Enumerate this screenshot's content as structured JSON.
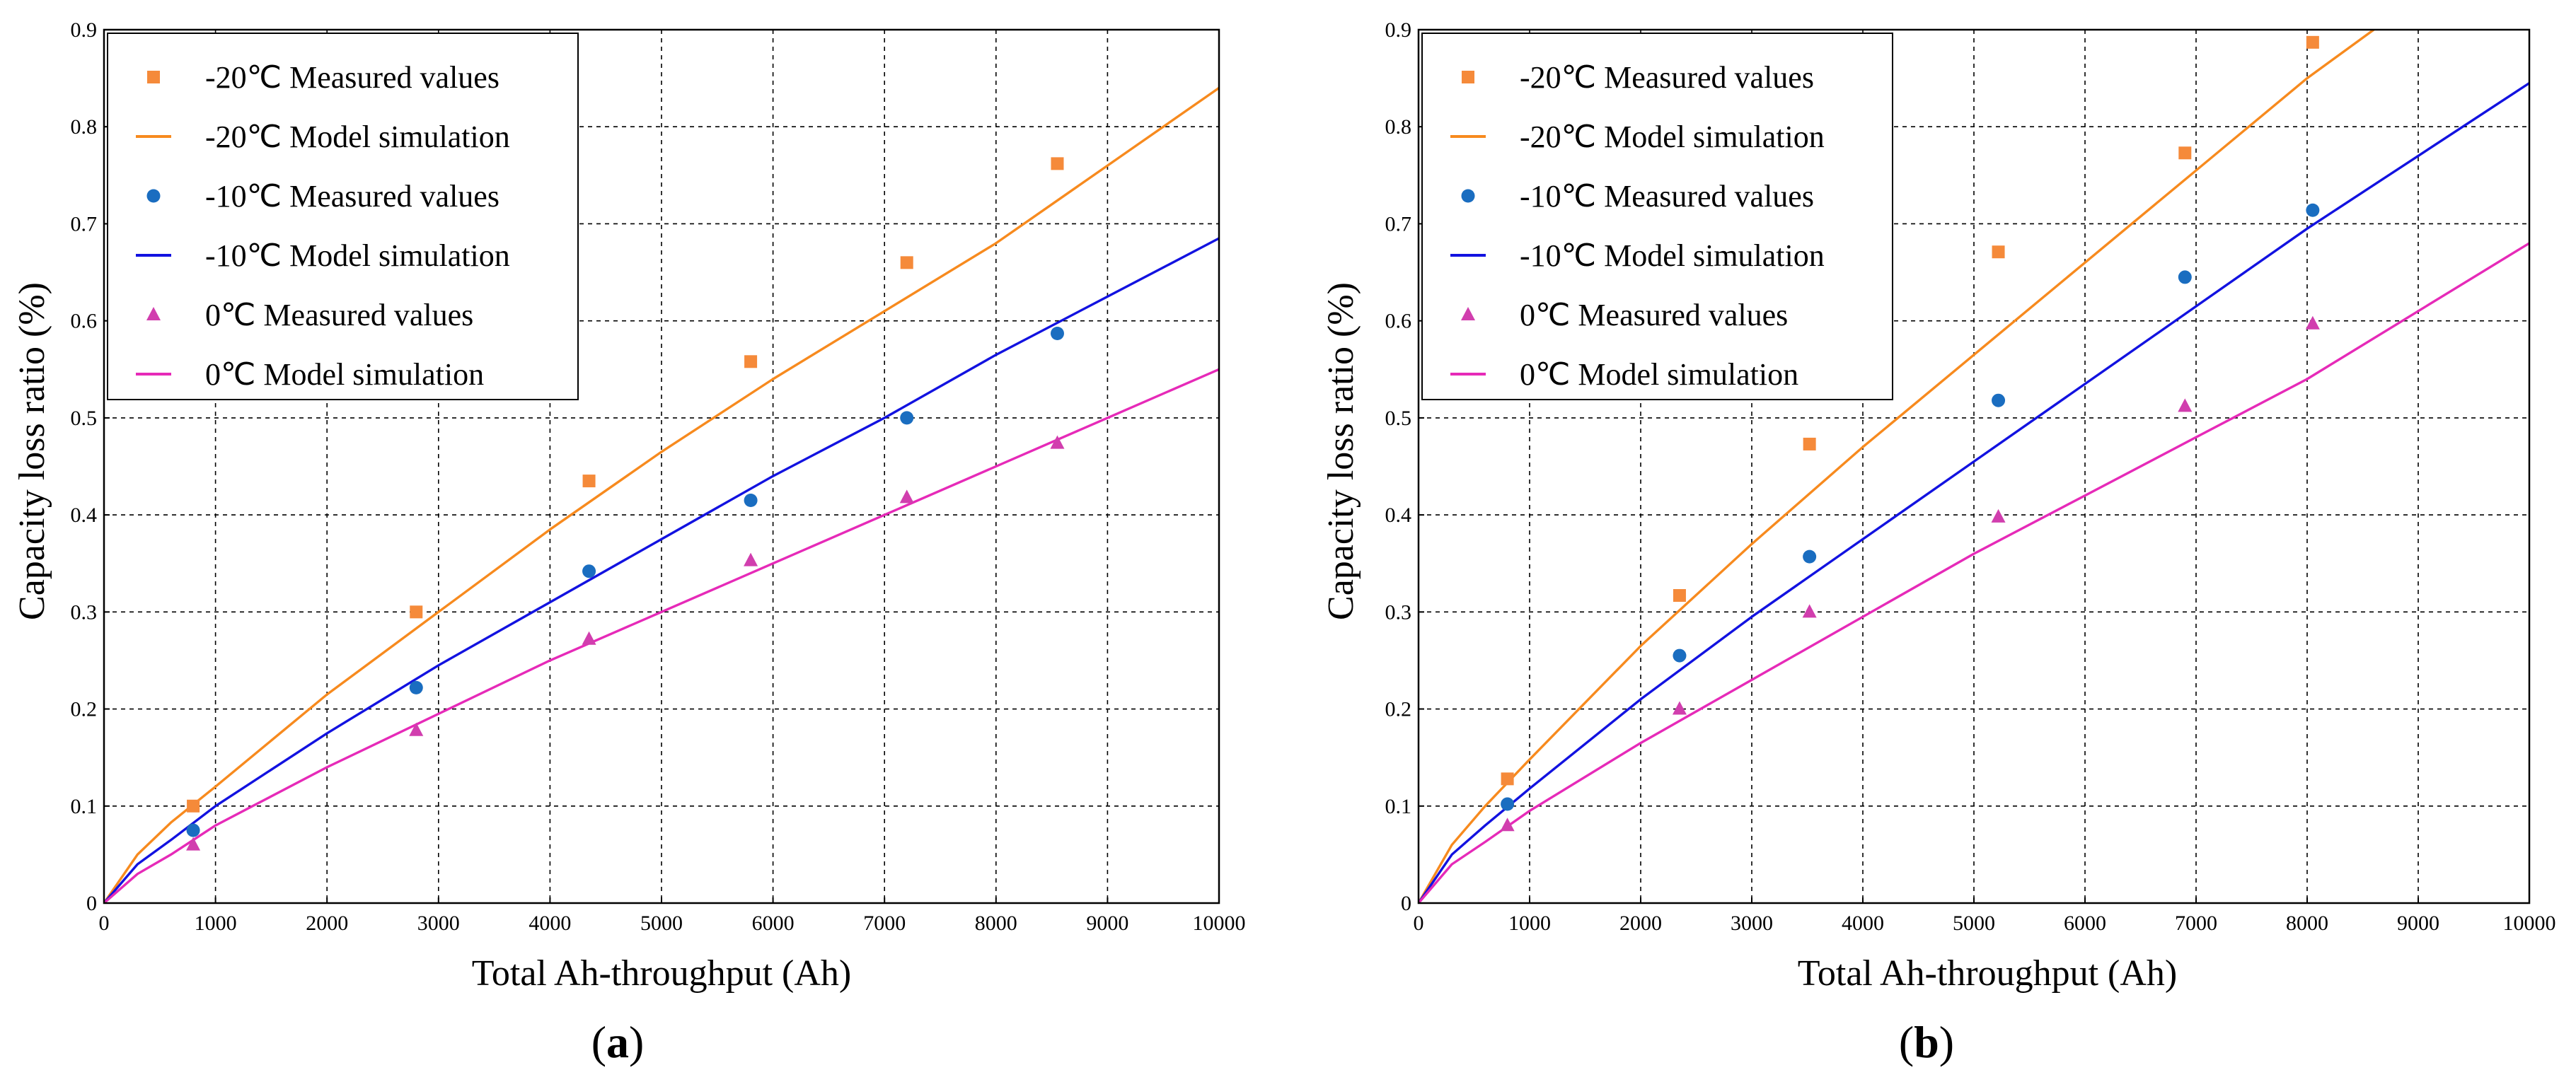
{
  "chart_data": [
    {
      "type": "scatter",
      "panel_label": "(a)",
      "panel_letter": "a",
      "xlabel": "Total Ah-throughput (Ah)",
      "ylabel": "Capacity loss ratio (%)",
      "xlim": [
        0,
        10000
      ],
      "ylim": [
        0,
        0.9
      ],
      "xticks": [
        0,
        1000,
        2000,
        3000,
        4000,
        5000,
        6000,
        7000,
        8000,
        9000,
        10000
      ],
      "yticks": [
        0,
        0.1,
        0.2,
        0.3,
        0.4,
        0.5,
        0.6,
        0.7,
        0.8,
        0.9
      ],
      "grid": true,
      "legend_position": "top-left",
      "series": [
        {
          "name": "-20℃ Measured values",
          "kind": "marker",
          "marker": "square",
          "color": "#F58A3A",
          "x": [
            800,
            2800,
            4350,
            5800,
            7200,
            8550
          ],
          "y": [
            0.1,
            0.3,
            0.435,
            0.558,
            0.66,
            0.762
          ]
        },
        {
          "name": "-20℃ Model simulation",
          "kind": "line",
          "color": "#F78A1E",
          "x": [
            0,
            300,
            600,
            1000,
            2000,
            3000,
            4000,
            5000,
            6000,
            7000,
            8000,
            9000,
            10000
          ],
          "y": [
            0,
            0.05,
            0.083,
            0.12,
            0.215,
            0.3,
            0.385,
            0.465,
            0.54,
            0.61,
            0.68,
            0.76,
            0.84
          ]
        },
        {
          "name": "-10℃ Measured values",
          "kind": "marker",
          "marker": "circle",
          "color": "#1A6DC0",
          "x": [
            800,
            2800,
            4350,
            5800,
            7200,
            8550
          ],
          "y": [
            0.075,
            0.222,
            0.342,
            0.415,
            0.5,
            0.587
          ]
        },
        {
          "name": "-10℃ Model simulation",
          "kind": "line",
          "color": "#1212E0",
          "x": [
            0,
            300,
            600,
            1000,
            2000,
            3000,
            4000,
            5000,
            6000,
            7000,
            8000,
            9000,
            10000
          ],
          "y": [
            0,
            0.04,
            0.065,
            0.1,
            0.175,
            0.245,
            0.31,
            0.375,
            0.44,
            0.5,
            0.565,
            0.625,
            0.685
          ]
        },
        {
          "name": "0℃ Measured values",
          "kind": "marker",
          "marker": "triangle",
          "color": "#D13EAE",
          "x": [
            800,
            2800,
            4350,
            5800,
            7200,
            8550
          ],
          "y": [
            0.06,
            0.178,
            0.272,
            0.353,
            0.418,
            0.474
          ]
        },
        {
          "name": "0℃ Model simulation",
          "kind": "line",
          "color": "#E62AB8",
          "x": [
            0,
            300,
            600,
            1000,
            2000,
            3000,
            4000,
            5000,
            6000,
            7000,
            8000,
            9000,
            10000
          ],
          "y": [
            0,
            0.03,
            0.05,
            0.08,
            0.14,
            0.195,
            0.25,
            0.3,
            0.35,
            0.4,
            0.45,
            0.5,
            0.55
          ]
        }
      ]
    },
    {
      "type": "scatter",
      "panel_label": "(b)",
      "panel_letter": "b",
      "xlabel": "Total Ah-throughput (Ah)",
      "ylabel": "Capacity loss ratio (%)",
      "xlim": [
        0,
        10000
      ],
      "ylim": [
        0,
        0.9
      ],
      "xticks": [
        0,
        1000,
        2000,
        3000,
        4000,
        5000,
        6000,
        7000,
        8000,
        9000,
        10000
      ],
      "yticks": [
        0,
        0.1,
        0.2,
        0.3,
        0.4,
        0.5,
        0.6,
        0.7,
        0.8,
        0.9
      ],
      "grid": true,
      "legend_position": "top-left",
      "series": [
        {
          "name": "-20℃ Measured values",
          "kind": "marker",
          "marker": "square",
          "color": "#F58A3A",
          "x": [
            800,
            2350,
            3520,
            5220,
            6900,
            8050
          ],
          "y": [
            0.128,
            0.317,
            0.473,
            0.671,
            0.773,
            0.887
          ]
        },
        {
          "name": "-20℃ Model simulation",
          "kind": "line",
          "color": "#F78A1E",
          "x": [
            0,
            300,
            600,
            1000,
            2000,
            3000,
            4000,
            5000,
            6000,
            7000,
            8000,
            8600
          ],
          "y": [
            0,
            0.06,
            0.1,
            0.148,
            0.265,
            0.37,
            0.47,
            0.565,
            0.66,
            0.755,
            0.85,
            0.9
          ]
        },
        {
          "name": "-10℃ Measured values",
          "kind": "marker",
          "marker": "circle",
          "color": "#1A6DC0",
          "x": [
            800,
            2350,
            3520,
            5220,
            6900,
            8050
          ],
          "y": [
            0.102,
            0.255,
            0.357,
            0.518,
            0.645,
            0.714
          ]
        },
        {
          "name": "-10℃ Model simulation",
          "kind": "line",
          "color": "#1212E0",
          "x": [
            0,
            300,
            600,
            1000,
            2000,
            3000,
            4000,
            5000,
            6000,
            7000,
            8000,
            9000,
            10000
          ],
          "y": [
            0,
            0.05,
            0.08,
            0.118,
            0.21,
            0.295,
            0.375,
            0.455,
            0.535,
            0.615,
            0.695,
            0.77,
            0.845
          ]
        },
        {
          "name": "0℃ Measured values",
          "kind": "marker",
          "marker": "triangle",
          "color": "#D13EAE",
          "x": [
            800,
            2350,
            3520,
            5220,
            6900,
            8050
          ],
          "y": [
            0.08,
            0.2,
            0.3,
            0.398,
            0.512,
            0.597
          ]
        },
        {
          "name": "0℃ Model simulation",
          "kind": "line",
          "color": "#E62AB8",
          "x": [
            0,
            300,
            600,
            1000,
            2000,
            3000,
            4000,
            5000,
            6000,
            7000,
            8000,
            9000,
            10000
          ],
          "y": [
            0,
            0.04,
            0.063,
            0.095,
            0.165,
            0.23,
            0.295,
            0.36,
            0.42,
            0.48,
            0.54,
            0.61,
            0.68
          ]
        }
      ]
    }
  ]
}
